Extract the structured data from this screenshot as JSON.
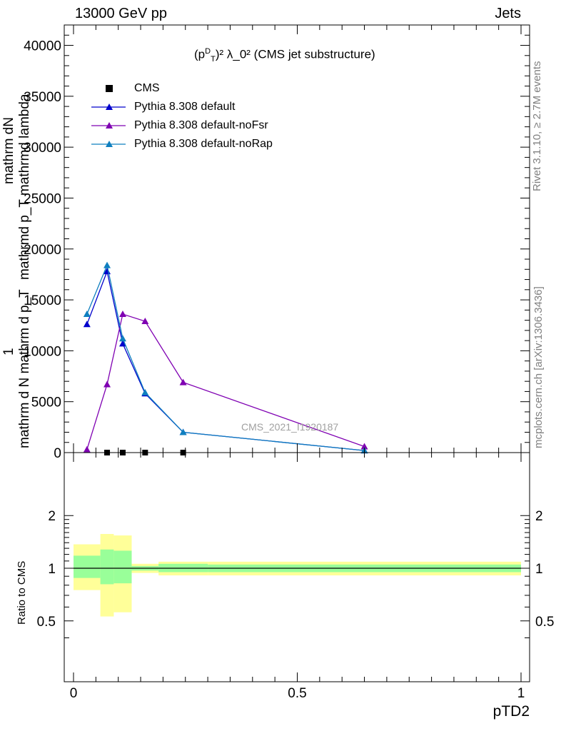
{
  "header": {
    "beam": "13000 GeV pp",
    "process": "Jets",
    "rivet": "Rivet 3.1.10, ≥ 2.7M events",
    "mcplots": "mcplots.cern.ch [arXiv:1306.3436]",
    "watermark": "CMS_2021_I1920187"
  },
  "main_ylabel": {
    "numerator_top": "mathrm dN",
    "numerator_bottom": "mathrmd p_T mathrmd lambda",
    "one": "1",
    "denominator": "mathrm d N mathrm d p_T"
  },
  "ratio_ylabel": "Ratio to CMS",
  "xlabel": "pTD2",
  "plot_title": {
    "prefix": "(p",
    "sup_d": "D",
    "sub_t": "T",
    "rest": ")² λ_0² (CMS jet substructure)"
  },
  "legend": [
    {
      "name": "CMS",
      "color": "#000000",
      "marker": "square"
    },
    {
      "name": "Pythia 8.308 default",
      "color": "#0000cc",
      "marker": "triangle"
    },
    {
      "name": "Pythia 8.308 default-noFsr",
      "color": "#7f00b2",
      "marker": "triangle"
    },
    {
      "name": "Pythia 8.308 default-noRap",
      "color": "#0f7fbf",
      "marker": "triangle"
    }
  ],
  "colors": {
    "band_outer": "#ffff99",
    "band_inner": "#99ff99"
  },
  "chart_data": [
    {
      "type": "line",
      "title": "(p_T^D)^2 λ_0^2 (CMS jet substructure)",
      "xlim": [
        0,
        1
      ],
      "ylim": [
        0,
        42000
      ],
      "yticks_major": [
        0,
        5000,
        10000,
        15000,
        20000,
        25000,
        30000,
        35000,
        40000
      ],
      "ytick_labels": [
        "0",
        "5000",
        "10000",
        "15000",
        "20000",
        "25000",
        "30000",
        "35000",
        "40000"
      ],
      "series": [
        {
          "name": "CMS",
          "x": [
            0.075,
            0.11,
            0.16,
            0.245
          ],
          "values": [
            0,
            0,
            0,
            0
          ]
        },
        {
          "name": "Pythia 8.308 default",
          "x": [
            0.03,
            0.075,
            0.11,
            0.16,
            0.245,
            0.65
          ],
          "values": [
            12600,
            17800,
            10700,
            5800,
            2000,
            200
          ]
        },
        {
          "name": "Pythia 8.308 default-noFsr",
          "x": [
            0.03,
            0.075,
            0.11,
            0.16,
            0.245,
            0.65
          ],
          "values": [
            300,
            6700,
            13600,
            12900,
            6900,
            600
          ]
        },
        {
          "name": "Pythia 8.308 default-noRap",
          "x": [
            0.03,
            0.075,
            0.11,
            0.16,
            0.245,
            0.65
          ],
          "values": [
            13600,
            18400,
            11200,
            5900,
            2000,
            200
          ]
        }
      ]
    },
    {
      "type": "area",
      "ylabel": "Ratio to CMS",
      "xlabel": "pTD2",
      "xlim": [
        0,
        1
      ],
      "ylim": [
        0.35,
        2.25
      ],
      "xticks": [
        0,
        0.5,
        1
      ],
      "xtick_labels": [
        "0",
        "0.5",
        "1"
      ],
      "yticks": [
        0.5,
        1,
        2
      ],
      "ytick_labels": [
        "0.5",
        "1",
        "2"
      ],
      "bins": [
        {
          "x": [
            0.0,
            0.06
          ],
          "outer": [
            0.75,
            1.37
          ],
          "inner": [
            0.88,
            1.18
          ]
        },
        {
          "x": [
            0.06,
            0.09
          ],
          "outer": [
            0.53,
            1.57
          ],
          "inner": [
            0.81,
            1.28
          ]
        },
        {
          "x": [
            0.09,
            0.13
          ],
          "outer": [
            0.56,
            1.54
          ],
          "inner": [
            0.82,
            1.26
          ]
        },
        {
          "x": [
            0.13,
            0.19
          ],
          "outer": [
            0.94,
            1.06
          ],
          "inner": [
            0.97,
            1.03
          ]
        },
        {
          "x": [
            0.19,
            0.3
          ],
          "outer": [
            0.91,
            1.09
          ],
          "inner": [
            0.95,
            1.06
          ]
        },
        {
          "x": [
            0.3,
            1.0
          ],
          "outer": [
            0.91,
            1.09
          ],
          "inner": [
            0.95,
            1.05
          ]
        }
      ]
    }
  ]
}
